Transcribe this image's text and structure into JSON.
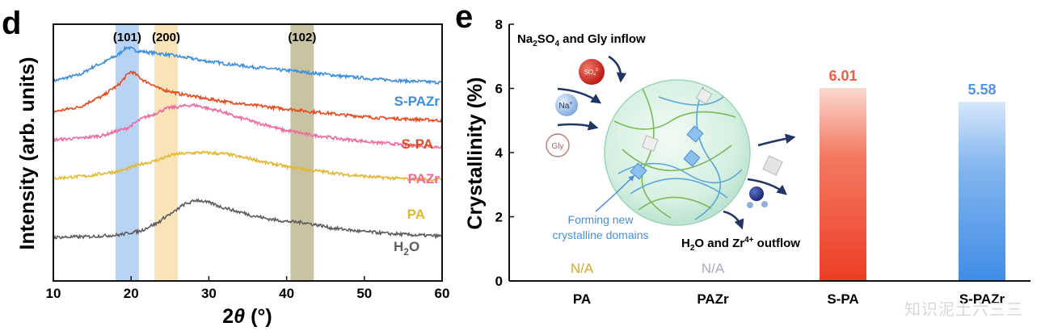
{
  "panels": {
    "left_letter": "d",
    "right_letter": "e"
  },
  "colors": {
    "S-PAZr": "#3a8fe0",
    "S-PA": "#e8491d",
    "PAZr": "#ee6aa0",
    "PA": "#e2b833",
    "H2O": "#5e5e5e",
    "band_101": "#a8c8f2",
    "band_200": "#f7dda5",
    "band_102": "#bdb48a",
    "bar_spa": "#f25c43",
    "bar_spazr": "#4f96ea",
    "na_pa": "#d9a927",
    "na_pazr": "#a9a9c7"
  },
  "watermark": "知识泥土六三三",
  "chart_data": [
    {
      "type": "line",
      "panel": "d",
      "xlabel_prefix": "2",
      "xlabel_symbol": "θ",
      "xlabel_suffix": " (°)",
      "ylabel": "Intensity (arb. units)",
      "xlim": [
        10,
        60
      ],
      "xticks": [
        "10",
        "20",
        "30",
        "40",
        "50",
        "60"
      ],
      "y_ticks_shown": false,
      "grid": false,
      "peak_bands": [
        {
          "label": "(101)",
          "x_from": 18,
          "x_to": 21
        },
        {
          "label": "(200)",
          "x_from": 23,
          "x_to": 26
        },
        {
          "label": "(102)",
          "x_from": 40.5,
          "x_to": 43.5
        }
      ],
      "series_labels": [
        "S-PAZr",
        "S-PA",
        "PAZr",
        "PA"
      ],
      "h2o_label": {
        "main": "H",
        "sub": "2",
        "tail": "O"
      },
      "series": [
        {
          "name": "S-PAZr",
          "x": [
            10,
            13,
            16,
            18,
            19.5,
            21,
            23,
            25,
            27,
            30,
            33,
            36,
            40,
            44,
            48,
            52,
            56,
            60
          ],
          "y": [
            0.78,
            0.8,
            0.845,
            0.875,
            0.91,
            0.895,
            0.888,
            0.88,
            0.87,
            0.855,
            0.843,
            0.832,
            0.82,
            0.808,
            0.795,
            0.785,
            0.778,
            0.773
          ]
        },
        {
          "name": "S-PA",
          "x": [
            10,
            13,
            16,
            18,
            20,
            22,
            24,
            27,
            30,
            33,
            36,
            40,
            44,
            48,
            52,
            56,
            60
          ],
          "y": [
            0.66,
            0.675,
            0.715,
            0.755,
            0.815,
            0.775,
            0.745,
            0.725,
            0.708,
            0.695,
            0.683,
            0.67,
            0.657,
            0.645,
            0.635,
            0.63,
            0.625
          ]
        },
        {
          "name": "PAZr",
          "x": [
            10,
            13,
            16,
            19,
            22,
            25,
            28,
            31,
            34,
            37,
            40,
            44,
            48,
            52,
            56,
            60
          ],
          "y": [
            0.55,
            0.555,
            0.565,
            0.59,
            0.64,
            0.675,
            0.685,
            0.665,
            0.635,
            0.61,
            0.585,
            0.565,
            0.55,
            0.538,
            0.528,
            0.522
          ]
        },
        {
          "name": "PA",
          "x": [
            10,
            14,
            18,
            22,
            26,
            29,
            32,
            35,
            38,
            41,
            44,
            48,
            52,
            56,
            60
          ],
          "y": [
            0.4,
            0.408,
            0.425,
            0.46,
            0.495,
            0.5,
            0.495,
            0.478,
            0.457,
            0.44,
            0.428,
            0.413,
            0.403,
            0.397,
            0.395
          ]
        },
        {
          "name": "H2O",
          "x": [
            10,
            14,
            18,
            21,
            23,
            25,
            27,
            28.5,
            30,
            32,
            34,
            36,
            38,
            40,
            42,
            44,
            46,
            50,
            54,
            57,
            60
          ],
          "y": [
            0.17,
            0.172,
            0.178,
            0.193,
            0.22,
            0.26,
            0.3,
            0.315,
            0.305,
            0.285,
            0.268,
            0.252,
            0.24,
            0.232,
            0.228,
            0.218,
            0.205,
            0.192,
            0.183,
            0.178,
            0.175
          ]
        }
      ]
    },
    {
      "type": "bar",
      "panel": "e",
      "categories": [
        "PA",
        "PAZr",
        "S-PA",
        "S-PAZr"
      ],
      "values": [
        null,
        null,
        6.01,
        5.58
      ],
      "value_labels": [
        "N/A",
        "N/A",
        "6.01",
        "5.58"
      ],
      "ylabel": "Crystallinity (%)",
      "ylim": [
        0,
        8
      ],
      "yticks": [
        "0",
        "2",
        "4",
        "6",
        "8"
      ],
      "grid": false,
      "annotations": {
        "inflow": {
          "pre": "Na",
          "sub": "2",
          "mid": "SO",
          "sub2": "4",
          "post": " and Gly inflow"
        },
        "outflow": {
          "pre": "H",
          "sub": "2",
          "mid": "O and Zr",
          "sup": "4+",
          "post": " outflow"
        },
        "forming_line1": "Forming new",
        "forming_line2": "crystalline domains",
        "so4_ball": {
          "main": "SO",
          "sub": "4",
          "sup": "2-"
        },
        "na_ball": {
          "main": "Na",
          "sup": "+"
        },
        "gly_ball": "Gly"
      }
    }
  ]
}
